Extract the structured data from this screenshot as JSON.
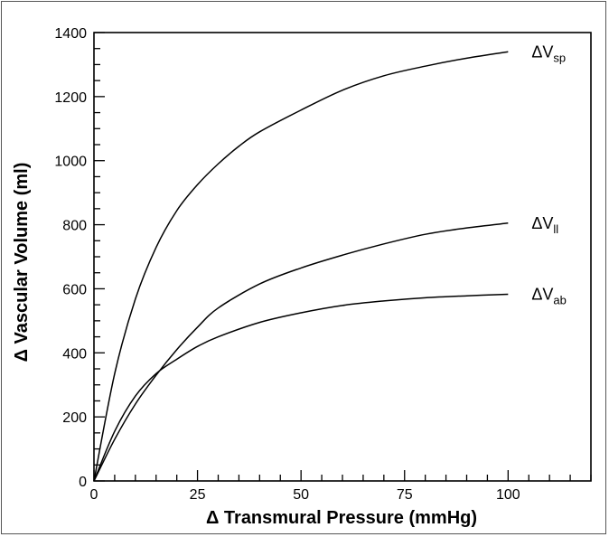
{
  "chart_data": {
    "type": "line",
    "title": "",
    "xlabel": "Δ Transmural Pressure (mmHg)",
    "ylabel": "Δ Vascular Volume (ml)",
    "xlim": [
      0,
      120
    ],
    "ylim": [
      0,
      1400
    ],
    "xticks": [
      0,
      25,
      50,
      75,
      100
    ],
    "yticks": [
      0,
      200,
      400,
      600,
      800,
      1000,
      1200,
      1400
    ],
    "grid": false,
    "legend": "inline labels at curve ends",
    "series": [
      {
        "name": "ΔVsp",
        "label_main": "ΔV",
        "label_sub": "sp",
        "x": [
          0,
          5,
          10,
          15,
          20,
          25,
          30,
          35,
          40,
          50,
          60,
          70,
          80,
          90,
          100
        ],
        "y": [
          0,
          335,
          568,
          729,
          844,
          925,
          990,
          1045,
          1090,
          1158,
          1220,
          1265,
          1295,
          1320,
          1340
        ]
      },
      {
        "name": "ΔVll",
        "label_main": "ΔV",
        "label_sub": "ll",
        "x": [
          0,
          5,
          10,
          15,
          20,
          25,
          30,
          40,
          50,
          60,
          70,
          80,
          90,
          100
        ],
        "y": [
          0,
          130,
          240,
          330,
          410,
          480,
          540,
          615,
          665,
          705,
          740,
          770,
          790,
          805
        ]
      },
      {
        "name": "ΔVab",
        "label_main": "ΔV",
        "label_sub": "ab",
        "x": [
          0,
          5,
          10,
          15,
          20,
          25,
          30,
          40,
          50,
          60,
          70,
          80,
          90,
          100
        ],
        "y": [
          0,
          155,
          265,
          335,
          380,
          420,
          450,
          495,
          525,
          548,
          562,
          572,
          578,
          583
        ]
      }
    ]
  }
}
